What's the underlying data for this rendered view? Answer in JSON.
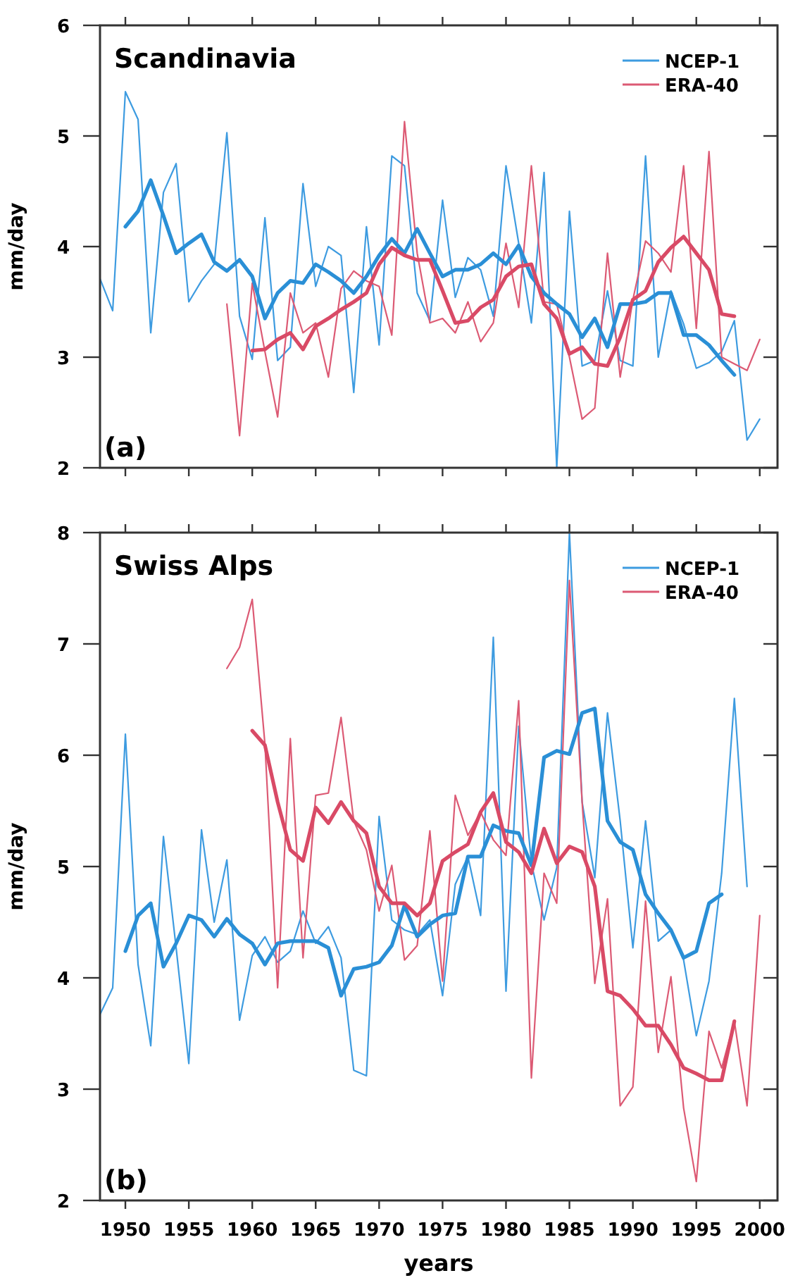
{
  "chart_data": [
    {
      "type": "line",
      "title": "Scandinavia",
      "ylabel": "mm/day",
      "annotations": [
        "(a)"
      ],
      "xlim": [
        1948,
        2001.4
      ],
      "xticks": [
        1950,
        1955,
        1960,
        1965,
        1970,
        1975,
        1980,
        1985,
        1990,
        1995,
        2000
      ],
      "ylim": [
        2,
        6
      ],
      "yticks": [
        2,
        3,
        4,
        5,
        6
      ],
      "tick_labels": "y",
      "legend": "top right",
      "grid": false,
      "line_style": "solid",
      "marker": "none",
      "series": [
        {
          "name": "NCEP-1",
          "color": "#3d9be0",
          "x": [
            1948,
            1949,
            1950,
            1951,
            1952,
            1953,
            1954,
            1955,
            1956,
            1957,
            1958,
            1959,
            1960,
            1961,
            1962,
            1963,
            1964,
            1965,
            1966,
            1967,
            1968,
            1969,
            1970,
            1971,
            1972,
            1973,
            1974,
            1975,
            1976,
            1977,
            1978,
            1979,
            1980,
            1981,
            1982,
            1983,
            1984,
            1985,
            1986,
            1987,
            1988,
            1989,
            1990,
            1991,
            1992,
            1993,
            1994,
            1995,
            1996,
            1997,
            1998,
            1999,
            2000
          ],
          "values": [
            3.71,
            3.42,
            5.4,
            5.15,
            3.22,
            4.49,
            4.75,
            3.5,
            3.69,
            3.84,
            5.03,
            3.37,
            2.98,
            4.26,
            2.97,
            3.09,
            4.57,
            3.64,
            4.0,
            3.92,
            2.68,
            4.18,
            3.11,
            4.82,
            4.73,
            3.58,
            3.33,
            4.42,
            3.54,
            3.9,
            3.79,
            3.37,
            4.73,
            4.03,
            3.31,
            4.67,
            2.0,
            4.32,
            2.92,
            2.97,
            3.6,
            2.97,
            2.92,
            4.82,
            3.0,
            3.6,
            3.3,
            2.9,
            2.95,
            3.05,
            3.33,
            2.25,
            2.44
          ]
        },
        {
          "name": "ERA-40",
          "color": "#dc5a74",
          "x": [
            1958,
            1959,
            1960,
            1961,
            1962,
            1963,
            1964,
            1965,
            1966,
            1967,
            1968,
            1969,
            1970,
            1971,
            1972,
            1973,
            1974,
            1975,
            1976,
            1977,
            1978,
            1979,
            1980,
            1981,
            1982,
            1983,
            1984,
            1985,
            1986,
            1987,
            1988,
            1989,
            1990,
            1991,
            1992,
            1993,
            1994,
            1995,
            1996,
            1997,
            1998,
            1999,
            2000
          ],
          "values": [
            3.48,
            2.29,
            3.67,
            3.05,
            2.46,
            3.58,
            3.22,
            3.31,
            2.82,
            3.62,
            3.78,
            3.69,
            3.64,
            3.2,
            5.13,
            3.94,
            3.31,
            3.35,
            3.22,
            3.5,
            3.14,
            3.31,
            4.03,
            3.45,
            4.73,
            3.5,
            3.48,
            3.0,
            2.44,
            2.54,
            3.94,
            2.82,
            3.52,
            4.05,
            3.94,
            3.77,
            4.73,
            3.26,
            4.86,
            3.0,
            2.94,
            2.88,
            3.16
          ]
        },
        {
          "color": "#2a8fd6",
          "x": [
            1950,
            1951,
            1952,
            1953,
            1954,
            1955,
            1956,
            1957,
            1958,
            1959,
            1960,
            1961,
            1962,
            1963,
            1964,
            1965,
            1966,
            1967,
            1968,
            1969,
            1970,
            1971,
            1972,
            1973,
            1974,
            1975,
            1976,
            1977,
            1978,
            1979,
            1980,
            1981,
            1982,
            1983,
            1984,
            1985,
            1986,
            1987,
            1988,
            1989,
            1990,
            1991,
            1992,
            1993,
            1994,
            1995,
            1996,
            1997,
            1998
          ],
          "values": [
            4.18,
            4.32,
            4.6,
            4.28,
            3.94,
            4.03,
            4.11,
            3.86,
            3.78,
            3.88,
            3.73,
            3.35,
            3.58,
            3.69,
            3.67,
            3.84,
            3.77,
            3.69,
            3.58,
            3.73,
            3.92,
            4.07,
            3.94,
            4.16,
            3.94,
            3.73,
            3.79,
            3.79,
            3.84,
            3.94,
            3.84,
            4.01,
            3.73,
            3.58,
            3.48,
            3.39,
            3.18,
            3.35,
            3.09,
            3.48,
            3.48,
            3.5,
            3.58,
            3.58,
            3.2,
            3.2,
            3.11,
            2.97,
            2.84
          ]
        },
        {
          "color": "#d94a66",
          "x": [
            1960,
            1961,
            1962,
            1963,
            1964,
            1965,
            1966,
            1967,
            1968,
            1969,
            1970,
            1971,
            1972,
            1973,
            1974,
            1975,
            1976,
            1977,
            1978,
            1979,
            1980,
            1981,
            1982,
            1983,
            1984,
            1985,
            1986,
            1987,
            1988,
            1989,
            1990,
            1991,
            1992,
            1993,
            1994,
            1995,
            1996,
            1997,
            1998
          ],
          "values": [
            3.06,
            3.07,
            3.16,
            3.22,
            3.07,
            3.28,
            3.35,
            3.43,
            3.5,
            3.58,
            3.84,
            3.99,
            3.92,
            3.88,
            3.88,
            3.6,
            3.31,
            3.33,
            3.45,
            3.52,
            3.73,
            3.82,
            3.84,
            3.48,
            3.35,
            3.03,
            3.09,
            2.94,
            2.92,
            3.18,
            3.52,
            3.6,
            3.86,
            3.99,
            4.09,
            3.94,
            3.79,
            3.39,
            3.37
          ]
        }
      ]
    },
    {
      "type": "line",
      "title": "Swiss Alps",
      "xlabel": "years",
      "ylabel": "mm/day",
      "annotations": [
        "(b)"
      ],
      "xlim": [
        1948,
        2001.4
      ],
      "xticks": [
        1950,
        1955,
        1960,
        1965,
        1970,
        1975,
        1980,
        1985,
        1990,
        1995,
        2000
      ],
      "ylim": [
        2,
        8
      ],
      "yticks": [
        2,
        3,
        4,
        5,
        6,
        7,
        8
      ],
      "legend": "top right",
      "grid": false,
      "line_style": "solid",
      "marker": "none",
      "series": [
        {
          "name": "NCEP-1",
          "color": "#3d9be0",
          "x": [
            1948,
            1949,
            1950,
            1951,
            1952,
            1953,
            1954,
            1955,
            1956,
            1957,
            1958,
            1959,
            1960,
            1961,
            1962,
            1963,
            1964,
            1965,
            1966,
            1967,
            1968,
            1969,
            1970,
            1971,
            1972,
            1973,
            1974,
            1975,
            1976,
            1977,
            1978,
            1979,
            1980,
            1981,
            1982,
            1983,
            1984,
            1985,
            1986,
            1987,
            1988,
            1989,
            1990,
            1991,
            1992,
            1993,
            1994,
            1995,
            1996,
            1997,
            1998,
            1999
          ],
          "values": [
            3.67,
            3.91,
            6.19,
            4.12,
            3.39,
            5.27,
            4.27,
            3.23,
            5.33,
            4.5,
            5.06,
            3.62,
            4.2,
            4.37,
            4.14,
            4.24,
            4.6,
            4.31,
            4.46,
            4.18,
            3.17,
            3.12,
            5.45,
            4.52,
            4.43,
            4.39,
            4.52,
            3.84,
            4.84,
            5.09,
            4.56,
            7.06,
            3.88,
            6.26,
            5.03,
            4.52,
            4.99,
            8.0,
            5.58,
            4.9,
            6.38,
            5.41,
            4.27,
            5.41,
            4.33,
            4.43,
            4.16,
            3.48,
            3.97,
            4.94,
            6.51,
            4.82
          ]
        },
        {
          "name": "ERA-40",
          "color": "#dc5a74",
          "x": [
            1958,
            1959,
            1960,
            1961,
            1962,
            1963,
            1964,
            1965,
            1966,
            1967,
            1968,
            1969,
            1970,
            1971,
            1972,
            1973,
            1974,
            1975,
            1976,
            1977,
            1978,
            1979,
            1980,
            1981,
            1982,
            1983,
            1984,
            1985,
            1986,
            1987,
            1988,
            1989,
            1990,
            1991,
            1992,
            1993,
            1994,
            1995,
            1996,
            1997,
            1998,
            1999,
            2000
          ],
          "values": [
            6.78,
            6.97,
            7.4,
            6.1,
            3.91,
            6.15,
            4.18,
            5.64,
            5.66,
            6.34,
            5.41,
            5.15,
            4.6,
            5.01,
            4.16,
            4.29,
            5.32,
            3.97,
            5.64,
            5.28,
            5.49,
            5.24,
            5.1,
            6.49,
            3.1,
            4.94,
            4.67,
            7.57,
            5.58,
            3.95,
            4.71,
            2.85,
            3.02,
            4.69,
            3.33,
            4.01,
            2.83,
            2.17,
            3.52,
            3.19,
            3.61,
            2.85,
            4.56
          ]
        },
        {
          "color": "#2a8fd6",
          "x": [
            1950,
            1951,
            1952,
            1953,
            1954,
            1955,
            1956,
            1957,
            1958,
            1959,
            1960,
            1961,
            1962,
            1963,
            1964,
            1965,
            1966,
            1967,
            1968,
            1969,
            1970,
            1971,
            1972,
            1973,
            1974,
            1975,
            1976,
            1977,
            1978,
            1979,
            1980,
            1981,
            1982,
            1983,
            1984,
            1985,
            1986,
            1987,
            1988,
            1989,
            1990,
            1991,
            1992,
            1993,
            1994,
            1995,
            1996,
            1997
          ],
          "values": [
            4.24,
            4.56,
            4.67,
            4.1,
            4.31,
            4.56,
            4.52,
            4.37,
            4.53,
            4.39,
            4.31,
            4.12,
            4.31,
            4.33,
            4.33,
            4.33,
            4.27,
            3.84,
            4.08,
            4.1,
            4.14,
            4.29,
            4.65,
            4.37,
            4.48,
            4.56,
            4.58,
            5.09,
            5.09,
            5.37,
            5.32,
            5.3,
            5.01,
            5.98,
            6.04,
            6.01,
            6.38,
            6.42,
            5.41,
            5.22,
            5.15,
            4.75,
            4.58,
            4.43,
            4.18,
            4.24,
            4.67,
            4.75
          ]
        },
        {
          "color": "#d94a66",
          "x": [
            1960,
            1961,
            1962,
            1963,
            1964,
            1965,
            1966,
            1967,
            1968,
            1969,
            1970,
            1971,
            1972,
            1973,
            1974,
            1975,
            1976,
            1977,
            1978,
            1979,
            1980,
            1981,
            1982,
            1983,
            1984,
            1985,
            1986,
            1987,
            1988,
            1989,
            1990,
            1991,
            1992,
            1993,
            1994,
            1995,
            1996,
            1997,
            1998
          ],
          "values": [
            6.22,
            6.09,
            5.58,
            5.15,
            5.05,
            5.53,
            5.39,
            5.58,
            5.41,
            5.3,
            4.82,
            4.67,
            4.67,
            4.56,
            4.67,
            5.05,
            5.13,
            5.2,
            5.49,
            5.66,
            5.22,
            5.13,
            4.94,
            5.34,
            5.03,
            5.18,
            5.13,
            4.82,
            3.88,
            3.84,
            3.72,
            3.57,
            3.57,
            3.4,
            3.19,
            3.14,
            3.08,
            3.08,
            3.61
          ]
        }
      ]
    }
  ]
}
